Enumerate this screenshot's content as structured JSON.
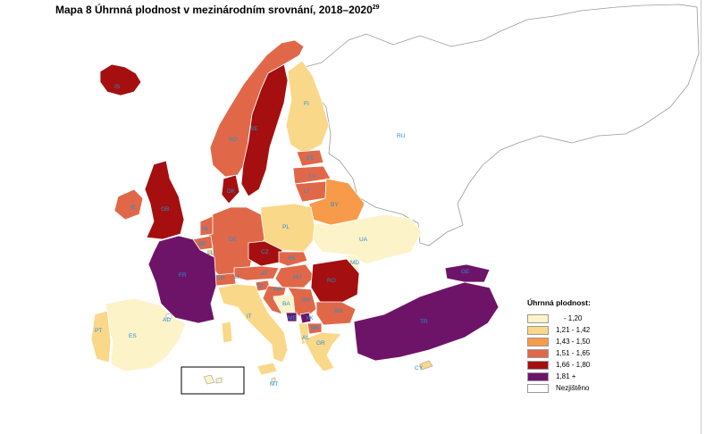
{
  "title": {
    "text": "Mapa 8 Úhrnná plodnost v mezinárodním srovnání, 2018–2020",
    "footnote": "29"
  },
  "legend": {
    "title": "Úhrnná plodnost:",
    "items": [
      {
        "label": "    - 1,20",
        "color": "#fdf3c9"
      },
      {
        "label": "1,21 - 1,42",
        "color": "#fad889"
      },
      {
        "label": "1,43 - 1,50",
        "color": "#f79a4a"
      },
      {
        "label": "1,51 - 1,65",
        "color": "#e06848"
      },
      {
        "label": "1,66 - 1,80",
        "color": "#a50f0f"
      },
      {
        "label": "1,81 +",
        "color": "#6e1468"
      },
      {
        "label": "Nezjištěno",
        "color": "#ffffff"
      }
    ]
  },
  "map": {
    "countries": [
      {
        "code": "IS",
        "category": 5
      },
      {
        "code": "IE",
        "category": 4
      },
      {
        "code": "GB",
        "category": 5
      },
      {
        "code": "NO",
        "category": 4
      },
      {
        "code": "SE",
        "category": 5
      },
      {
        "code": "FI",
        "category": 2
      },
      {
        "code": "DK",
        "category": 5
      },
      {
        "code": "EE",
        "category": 4
      },
      {
        "code": "LV",
        "category": 4
      },
      {
        "code": "LT",
        "category": 4
      },
      {
        "code": "BY",
        "category": 3
      },
      {
        "code": "RU",
        "category": 7
      },
      {
        "code": "NL",
        "category": 4
      },
      {
        "code": "BE",
        "category": 4
      },
      {
        "code": "LU",
        "category": 2
      },
      {
        "code": "DE",
        "category": 4
      },
      {
        "code": "PL",
        "category": 2
      },
      {
        "code": "CZ",
        "category": 5
      },
      {
        "code": "SK",
        "category": 4
      },
      {
        "code": "AT",
        "category": 4
      },
      {
        "code": "CH",
        "category": 4
      },
      {
        "code": "FR",
        "category": 6
      },
      {
        "code": "UA",
        "category": 1
      },
      {
        "code": "MD",
        "category": 1
      },
      {
        "code": "HU",
        "category": 4
      },
      {
        "code": "RO",
        "category": 5
      },
      {
        "code": "SI",
        "category": 4
      },
      {
        "code": "HR",
        "category": 4
      },
      {
        "code": "BA",
        "category": 1
      },
      {
        "code": "RS",
        "category": 4
      },
      {
        "code": "BG",
        "category": 4
      },
      {
        "code": "ME",
        "category": 6
      },
      {
        "code": "MK",
        "category": 4
      },
      {
        "code": "AL",
        "category": 2
      },
      {
        "code": "GR",
        "category": 2
      },
      {
        "code": "TR",
        "category": 6
      },
      {
        "code": "GE",
        "category": 6
      },
      {
        "code": "IT",
        "category": 2
      },
      {
        "code": "ES",
        "category": 1
      },
      {
        "code": "PT",
        "category": 2
      },
      {
        "code": "AD",
        "category": 7
      },
      {
        "code": "MT",
        "category": 1
      },
      {
        "code": "CY",
        "category": 2
      }
    ]
  }
}
